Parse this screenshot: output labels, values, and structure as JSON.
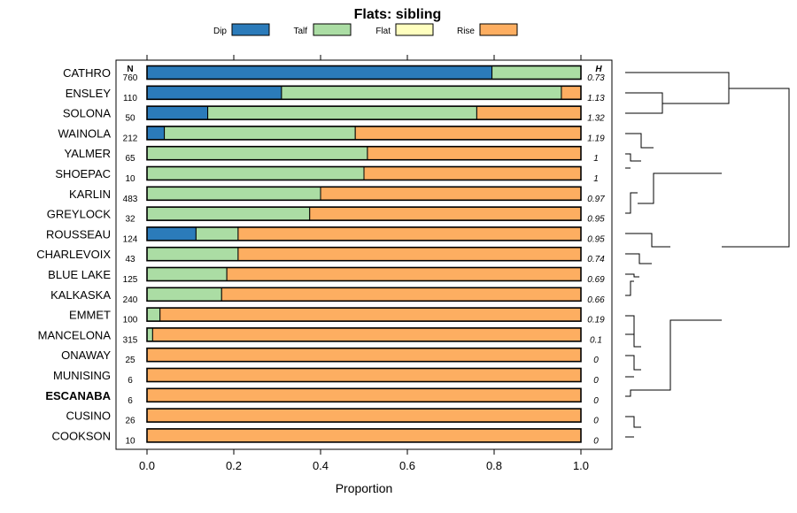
{
  "chart_data": {
    "type": "bar",
    "orientation": "horizontal",
    "stacked": true,
    "title": "Flats: sibling",
    "xlabel": "Proportion",
    "ylabel": "",
    "xlim": [
      0,
      1
    ],
    "x_ticks": [
      "0.0",
      "0.2",
      "0.4",
      "0.6",
      "0.8",
      "1.0"
    ],
    "x_tick_values": [
      0,
      0.2,
      0.4,
      0.6,
      0.8,
      1.0
    ],
    "n_header": "N",
    "h_header": "H",
    "legend": [
      {
        "name": "Dip",
        "color": "#2b7bba"
      },
      {
        "name": "Talf",
        "color": "#abdda4"
      },
      {
        "name": "Flat",
        "color": "#ffffbf"
      },
      {
        "name": "Rise",
        "color": "#fdae61"
      }
    ],
    "categories": [
      "CATHRO",
      "ENSLEY",
      "SOLONA",
      "WAINOLA",
      "YALMER",
      "SHOEPAC",
      "KARLIN",
      "GREYLOCK",
      "ROUSSEAU",
      "CHARLEVOIX",
      "BLUE LAKE",
      "KALKASKA",
      "EMMET",
      "MANCELONA",
      "ONAWAY",
      "MUNISING",
      "ESCANABA",
      "CUSINO",
      "COOKSON"
    ],
    "highlight": "ESCANABA",
    "n_values": [
      "760",
      "110",
      "50",
      "212",
      "65",
      "10",
      "483",
      "32",
      "124",
      "43",
      "125",
      "240",
      "100",
      "315",
      "25",
      "6",
      "6",
      "26",
      "10"
    ],
    "h_values": [
      "0.73",
      "1.13",
      "1.32",
      "1.19",
      "1",
      "1",
      "0.97",
      "0.95",
      "0.95",
      "0.74",
      "0.69",
      "0.66",
      "0.19",
      "0.1",
      "0",
      "0",
      "0",
      "0",
      "0"
    ],
    "series": [
      {
        "name": "Dip",
        "values": [
          0.795,
          0.31,
          0.14,
          0.04,
          0,
          0,
          0,
          0,
          0.113,
          0,
          0,
          0,
          0,
          0,
          0,
          0,
          0,
          0,
          0
        ]
      },
      {
        "name": "Talf",
        "values": [
          0.205,
          0.645,
          0.62,
          0.44,
          0.508,
          0.5,
          0.4,
          0.375,
          0.097,
          0.21,
          0.184,
          0.172,
          0.03,
          0.013,
          0,
          0,
          0,
          0,
          0
        ]
      },
      {
        "name": "Flat",
        "values": [
          0,
          0,
          0,
          0,
          0,
          0,
          0,
          0,
          0,
          0,
          0,
          0,
          0,
          0,
          0,
          0,
          0,
          0,
          0
        ]
      },
      {
        "name": "Rise",
        "values": [
          0,
          0.045,
          0.24,
          0.52,
          0.492,
          0.5,
          0.6,
          0.625,
          0.79,
          0.79,
          0.816,
          0.828,
          0.97,
          0.987,
          1,
          1,
          1,
          1,
          1
        ]
      }
    ]
  }
}
